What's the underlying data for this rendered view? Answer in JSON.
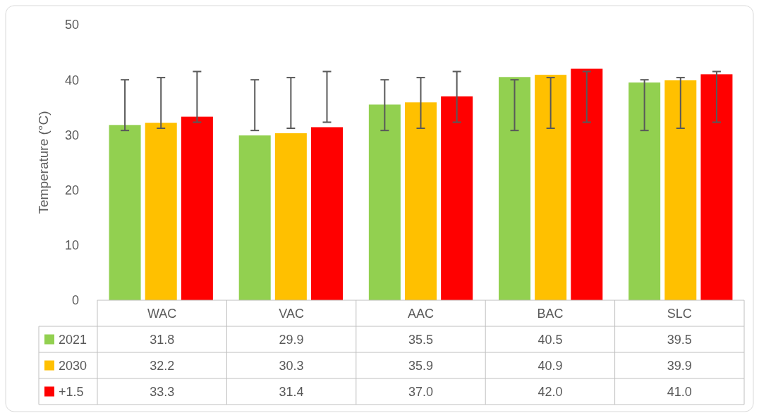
{
  "chart_data": {
    "type": "bar",
    "ylabel": "Temperature (°C)",
    "categories": [
      "WAC",
      "VAC",
      "AAC",
      "BAC",
      "SLC"
    ],
    "ylim": [
      0,
      50
    ],
    "yticks": [
      0,
      10,
      20,
      30,
      40,
      50
    ],
    "grid": false,
    "legend": "bottom",
    "series": [
      {
        "name": "2021",
        "color": "#92d050",
        "values": [
          31.8,
          29.9,
          35.5,
          40.5,
          39.5
        ],
        "value_labels": [
          "31.8",
          "29.9",
          "35.5",
          "40.5",
          "39.5"
        ],
        "errors": [
          [
            30.8,
            40.0
          ],
          [
            30.8,
            40.0
          ],
          [
            30.8,
            40.0
          ],
          [
            30.8,
            40.0
          ],
          [
            30.8,
            40.0
          ]
        ]
      },
      {
        "name": "2030",
        "color": "#ffc000",
        "values": [
          32.2,
          30.3,
          35.9,
          40.9,
          39.9
        ],
        "value_labels": [
          "32.2",
          "30.3",
          "35.9",
          "40.9",
          "39.9"
        ],
        "errors": [
          [
            31.2,
            40.4
          ],
          [
            31.2,
            40.4
          ],
          [
            31.2,
            40.4
          ],
          [
            31.2,
            40.4
          ],
          [
            31.2,
            40.4
          ]
        ]
      },
      {
        "name": "+1.5",
        "color": "#ff0000",
        "values": [
          33.3,
          31.4,
          37.0,
          42.0,
          41.0
        ],
        "value_labels": [
          "33.3",
          "31.4",
          "37.0",
          "42.0",
          "41.0"
        ],
        "errors": [
          [
            32.3,
            41.5
          ],
          [
            32.3,
            41.5
          ],
          [
            32.3,
            41.5
          ],
          [
            32.3,
            41.5
          ],
          [
            32.3,
            41.5
          ]
        ]
      }
    ]
  }
}
